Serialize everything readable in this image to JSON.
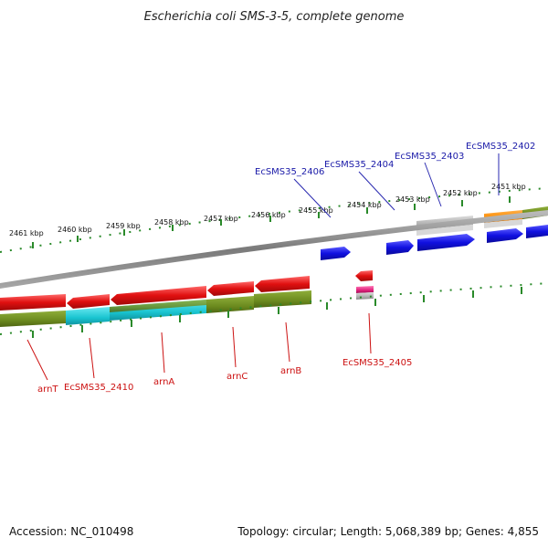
{
  "title": "Escherichia coli SMS-3-5, complete genome",
  "footer": {
    "accession": "Accession: NC_010498",
    "summary": "Topology: circular; Length: 5,068,389 bp; Genes: 4,855"
  },
  "scale_labels": [
    "2461 kbp",
    "2460 kbp",
    "2459 kbp",
    "2458 kbp",
    "2457 kbp",
    "2456 kbp",
    "2455 kbp",
    "2454 kbp",
    "2453 kbp",
    "2452 kbp",
    "2451 kbp"
  ],
  "forward_gene_labels": [
    "EcSMS35_2406",
    "EcSMS35_2404",
    "EcSMS35_2403",
    "EcSMS35_2402"
  ],
  "reverse_gene_labels": [
    "arnT",
    "EcSMS35_2410",
    "arnA",
    "arnC",
    "arnB",
    "EcSMS35_2405"
  ],
  "colors": {
    "backbone": "#8a8a8a",
    "tick": "#2a8a2a",
    "forward_cds": "#1a1ae0",
    "reverse_cds": "#e01010",
    "olive_band": "#6b8a1e",
    "cyan_band": "#19c4d0",
    "orange_band": "#ff8c00",
    "grey_band": "#b0b0b0",
    "pink_band": "#e0207a"
  }
}
